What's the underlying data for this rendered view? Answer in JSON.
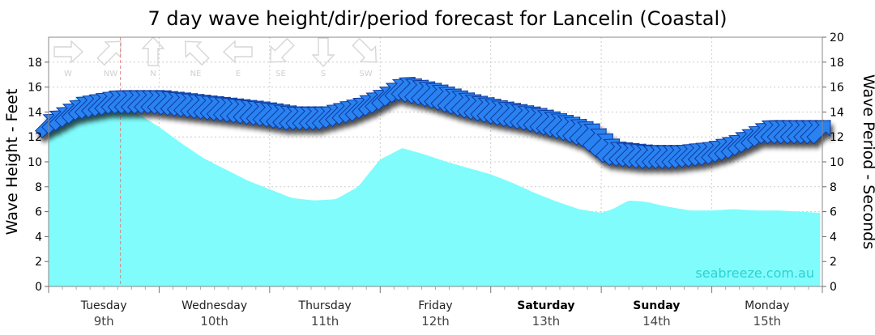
{
  "chart_data": {
    "type": "area",
    "title": "7 day wave height/dir/period forecast for Lancelin (Coastal)",
    "ylabel": "Wave Height - Feet",
    "y2label": "Wave Period - Seconds",
    "ylim": [
      0,
      20
    ],
    "yticks": [
      0,
      2,
      4,
      6,
      8,
      10,
      12,
      14,
      16,
      18
    ],
    "y2lim": [
      0,
      20
    ],
    "y2ticks": [
      0,
      2,
      4,
      6,
      8,
      10,
      12,
      14,
      16,
      18,
      20
    ],
    "watermark": "seabreeze.com.au",
    "days": [
      {
        "name": "Tuesday",
        "date": "9th",
        "bold": false
      },
      {
        "name": "Wednesday",
        "date": "10th",
        "bold": false
      },
      {
        "name": "Thursday",
        "date": "11th",
        "bold": false
      },
      {
        "name": "Friday",
        "date": "12th",
        "bold": false
      },
      {
        "name": "Saturday",
        "date": "13th",
        "bold": true
      },
      {
        "name": "Sunday",
        "date": "14th",
        "bold": true
      },
      {
        "name": "Monday",
        "date": "15th",
        "bold": false
      }
    ],
    "compass": [
      "W",
      "NW",
      "N",
      "NE",
      "E",
      "SE",
      "S",
      "SW"
    ],
    "series": [
      {
        "kind": "wave-height-ft",
        "color": "#80fcfc",
        "x": [
          0,
          0.25,
          0.4,
          0.6,
          0.8,
          1.0,
          1.2,
          1.4,
          1.6,
          1.8,
          2.0,
          2.2,
          2.4,
          2.6,
          2.8,
          3.0,
          3.2,
          3.4,
          3.6,
          3.8,
          4.0,
          4.2,
          4.4,
          4.6,
          4.8,
          5.0,
          5.1,
          5.25,
          5.4,
          5.6,
          5.8,
          6.0,
          6.2,
          6.4,
          6.6,
          6.8,
          6.98
        ],
        "values": [
          12.3,
          15.2,
          15.3,
          14.6,
          13.9,
          12.8,
          11.5,
          10.3,
          9.4,
          8.5,
          7.8,
          7.1,
          6.9,
          7.0,
          8.0,
          10.2,
          11.1,
          10.6,
          10.0,
          9.5,
          9.0,
          8.3,
          7.5,
          6.8,
          6.2,
          5.9,
          6.2,
          6.9,
          6.8,
          6.4,
          6.1,
          6.1,
          6.2,
          6.1,
          6.1,
          6.0,
          5.9
        ]
      },
      {
        "kind": "wave-period-s",
        "color": "#2b82f0",
        "x": [
          0,
          0.3,
          0.6,
          0.8,
          1.0,
          1.3,
          1.6,
          1.9,
          2.2,
          2.5,
          2.8,
          3.0,
          3.2,
          3.5,
          3.8,
          4.1,
          4.4,
          4.7,
          4.9,
          5.1,
          5.4,
          5.7,
          6.0,
          6.2,
          6.5,
          6.8,
          6.98
        ],
        "values": [
          13.0,
          14.4,
          14.9,
          14.9,
          14.9,
          14.6,
          14.3,
          14.0,
          13.6,
          13.6,
          14.3,
          15.0,
          16.0,
          15.4,
          14.6,
          14.0,
          13.5,
          12.8,
          12.2,
          10.8,
          10.5,
          10.5,
          10.8,
          11.3,
          12.5,
          12.5,
          12.5
        ]
      }
    ],
    "current_time_x": 0.65
  }
}
